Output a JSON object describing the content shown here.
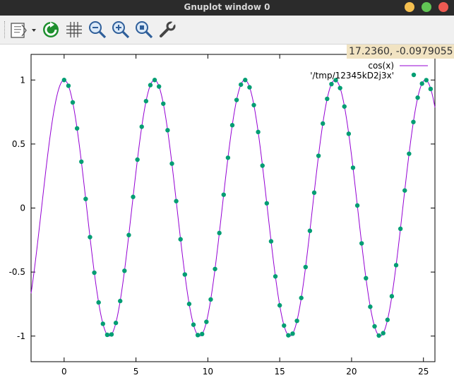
{
  "window": {
    "title": "Gnuplot window 0",
    "buttons": {
      "minimize_color": "#f5bf4f",
      "maximize_color": "#61c554",
      "close_color": "#ee5a52"
    }
  },
  "toolbar": {
    "items": [
      {
        "name": "copy-menu",
        "icon": "clipboard-icon"
      },
      {
        "name": "replot",
        "icon": "refresh-icon"
      },
      {
        "name": "grid",
        "icon": "grid-icon"
      },
      {
        "name": "zoom-out",
        "icon": "zoom-out-icon"
      },
      {
        "name": "zoom-in",
        "icon": "zoom-in-icon"
      },
      {
        "name": "zoom-reset",
        "icon": "zoom-reset-icon"
      },
      {
        "name": "settings",
        "icon": "wrench-icon"
      }
    ]
  },
  "status": {
    "coordinates": "17.2360, -0.0979055"
  },
  "colors": {
    "line": "#9400d3",
    "points": "#009e73"
  },
  "chart_data": {
    "type": "line",
    "title": "",
    "xlabel": "",
    "ylabel": "",
    "xlim": [
      -2.3,
      25.8
    ],
    "ylim": [
      -1.2,
      1.2
    ],
    "grid": false,
    "legend_position": "top-right",
    "xticks": [
      0,
      5,
      10,
      15,
      20,
      25
    ],
    "xtick_labels": [
      "0",
      "5",
      "10",
      "15",
      "20",
      "25"
    ],
    "yticks": [
      1,
      0.5,
      0,
      -0.5,
      -1
    ],
    "ytick_labels": [
      "1",
      "0.5",
      "0",
      "-0.5",
      "-1"
    ],
    "series": [
      {
        "name": "cos(x)",
        "style": "line",
        "function": "cos",
        "x_range": [
          -2.3,
          25.8
        ]
      },
      {
        "name": "'/tmp/12345kD2j3x'",
        "style": "points",
        "x": [
          0,
          0.3,
          0.6,
          0.9,
          1.2,
          1.5,
          1.8,
          2.1,
          2.4,
          2.7,
          3.0,
          3.3,
          3.6,
          3.9,
          4.2,
          4.5,
          4.8,
          5.1,
          5.4,
          5.7,
          6.0,
          6.3,
          6.6,
          6.9,
          7.2,
          7.5,
          7.8,
          8.1,
          8.4,
          8.7,
          9.0,
          9.3,
          9.6,
          9.9,
          10.2,
          10.5,
          10.8,
          11.1,
          11.4,
          11.7,
          12.0,
          12.3,
          12.6,
          12.9,
          13.2,
          13.5,
          13.8,
          14.1,
          14.4,
          14.7,
          15.0,
          15.3,
          15.6,
          15.9,
          16.2,
          16.5,
          16.8,
          17.1,
          17.4,
          17.7,
          18.0,
          18.3,
          18.6,
          18.9,
          19.2,
          19.5,
          19.8,
          20.1,
          20.4,
          20.7,
          21.0,
          21.3,
          21.6,
          21.9,
          22.2,
          22.5,
          22.8,
          23.1,
          23.4,
          23.7,
          24.0,
          24.3,
          24.6,
          24.9,
          25.2,
          25.5
        ],
        "y": [
          1.0,
          0.955,
          0.825,
          0.622,
          0.362,
          0.071,
          -0.227,
          -0.505,
          -0.737,
          -0.904,
          -0.99,
          -0.987,
          -0.897,
          -0.726,
          -0.49,
          -0.211,
          0.087,
          0.378,
          0.635,
          0.835,
          0.96,
          1.0,
          0.949,
          0.815,
          0.608,
          0.347,
          0.054,
          -0.244,
          -0.519,
          -0.749,
          -0.911,
          -0.992,
          -0.984,
          -0.889,
          -0.714,
          -0.476,
          -0.195,
          0.104,
          0.393,
          0.647,
          0.844,
          0.964,
          1.0,
          0.943,
          0.804,
          0.594,
          0.331,
          0.037,
          -0.26,
          -0.534,
          -0.76,
          -0.918,
          -0.994,
          -0.981,
          -0.881,
          -0.702,
          -0.461,
          -0.178,
          0.12,
          0.408,
          0.66,
          0.853,
          0.968,
          0.999,
          0.937,
          0.793,
          0.58,
          0.315,
          0.02,
          -0.276,
          -0.548,
          -0.771,
          -0.924,
          -0.996,
          -0.977,
          -0.873,
          -0.689,
          -0.446,
          -0.162,
          0.137,
          0.424,
          0.672,
          0.862,
          0.972,
          0.999,
          0.93
        ]
      }
    ]
  }
}
